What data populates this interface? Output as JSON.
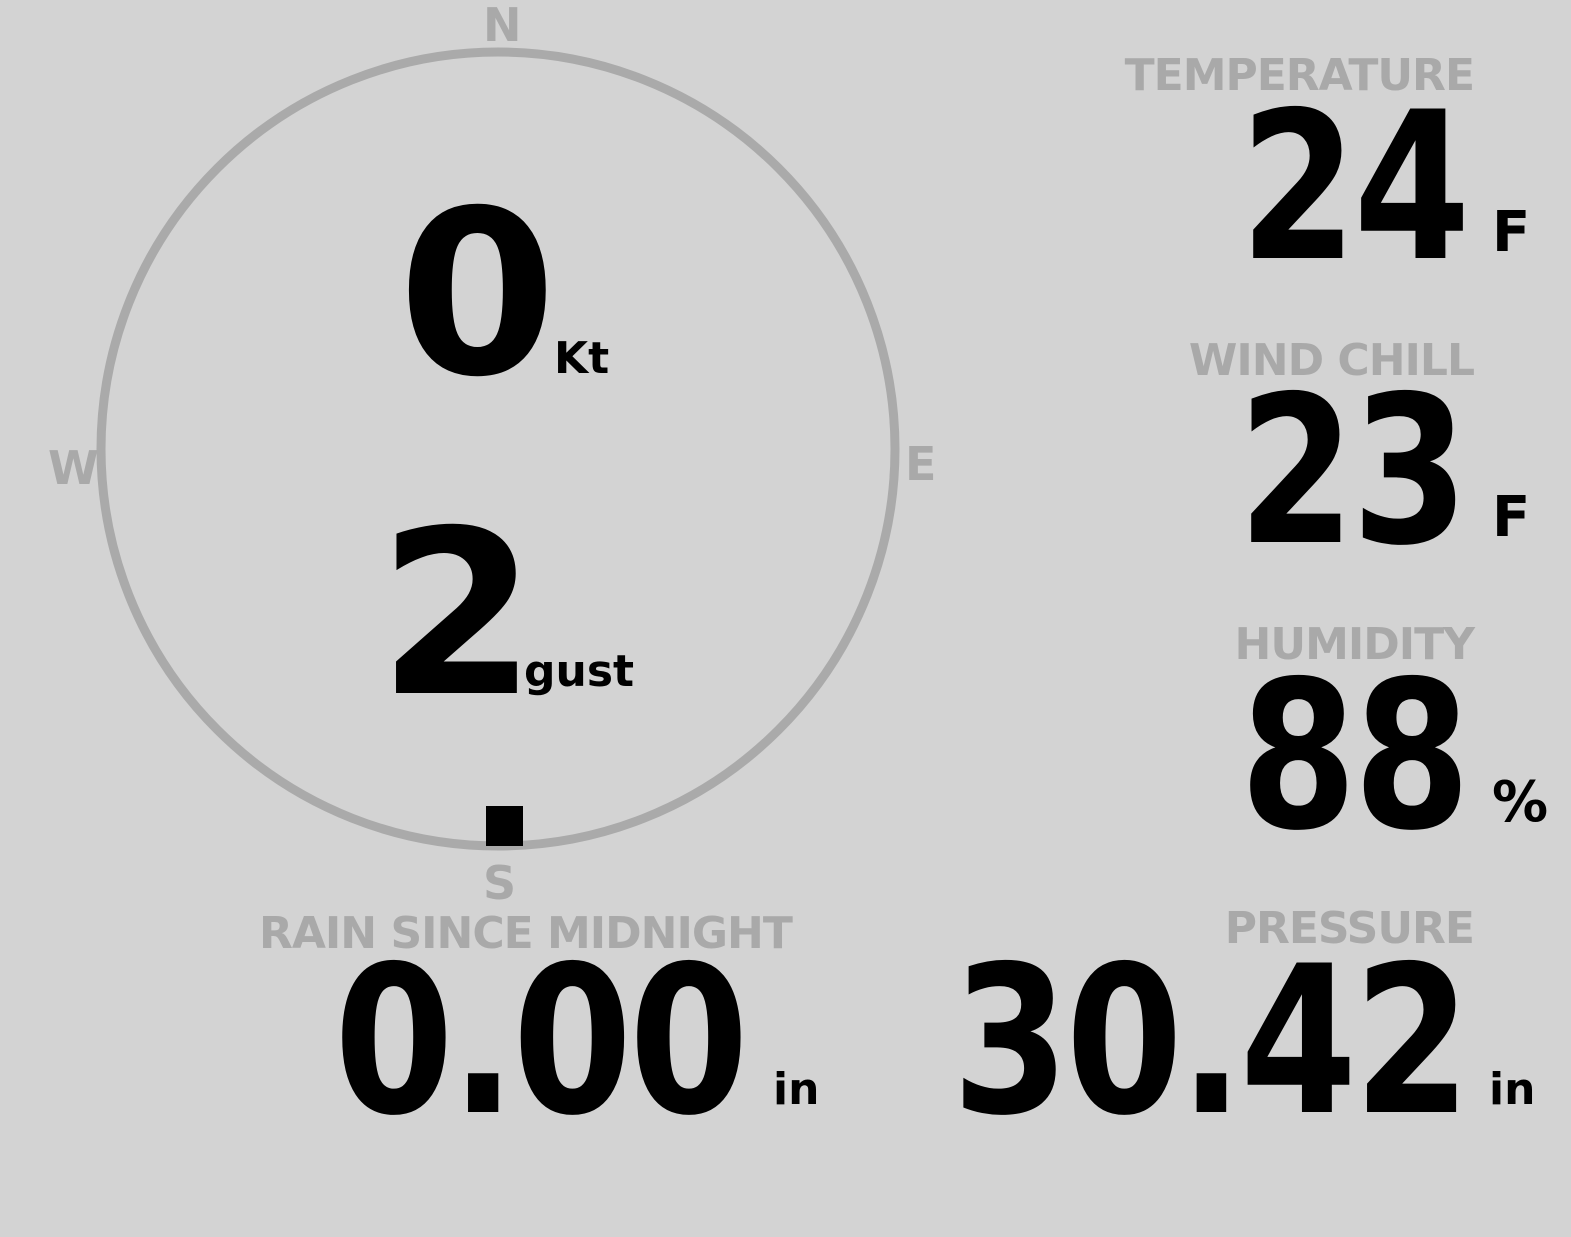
{
  "wind": {
    "compass": {
      "north": "N",
      "east": "E",
      "south": "S",
      "west": "W"
    },
    "direction_deg": 180,
    "speed": "0",
    "speed_unit": "Kt",
    "gust": "2",
    "gust_unit": "gust",
    "ring_color": "#aaaaaa",
    "marker_color": "#000000"
  },
  "temperature": {
    "label": "TEMPERATURE",
    "value": "24",
    "unit": "F"
  },
  "wind_chill": {
    "label": "WIND CHILL",
    "value": "23",
    "unit": "F"
  },
  "humidity": {
    "label": "HUMIDITY",
    "value": "88",
    "unit": "%"
  },
  "rain": {
    "label": "RAIN SINCE MIDNIGHT",
    "value": "0.00",
    "unit": "in"
  },
  "pressure": {
    "label": "PRESSURE",
    "value": "30.42",
    "unit": "in"
  },
  "colors": {
    "background": "#d3d3d3",
    "label": "#a9a9a9",
    "value": "#000000"
  }
}
